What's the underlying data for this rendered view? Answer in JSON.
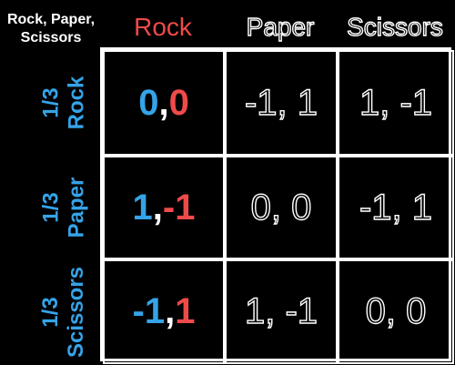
{
  "title": {
    "line1": "Rock, Paper,",
    "line2": "Scissors"
  },
  "colors": {
    "blue": "#35a3e8",
    "red": "#ef4a4a",
    "white": "#ffffff",
    "background": "#000000"
  },
  "columns": [
    "Rock",
    "Paper",
    "Scissors"
  ],
  "rows": [
    {
      "prob": "1/3",
      "label": "Rock"
    },
    {
      "prob": "1/3",
      "label": "Paper"
    },
    {
      "prob": "1/3",
      "label": "Scissors"
    }
  ],
  "payoffs": [
    [
      {
        "a": "0",
        "sep": ", ",
        "b": "0"
      },
      {
        "text": "-1, 1"
      },
      {
        "text": "1, -1"
      }
    ],
    [
      {
        "a": "1",
        "sep": ", ",
        "b": "-1"
      },
      {
        "text": "0, 0"
      },
      {
        "text": "-1, 1"
      }
    ],
    [
      {
        "a": "-1",
        "sep": ", ",
        "b": "1"
      },
      {
        "text": "1, -1"
      },
      {
        "text": "0, 0"
      }
    ]
  ]
}
